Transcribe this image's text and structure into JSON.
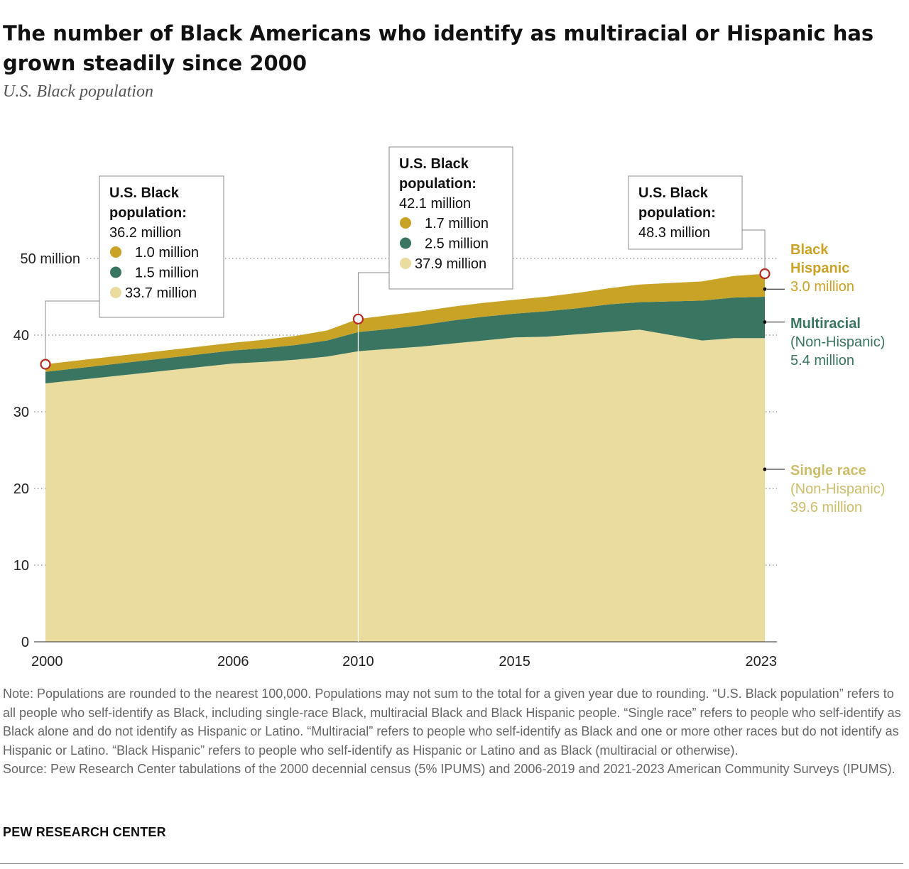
{
  "title": "The number of Black Americans who identify as multiracial or Hispanic has grown steadily since 2000",
  "subtitle": "U.S. Black population",
  "colors": {
    "single": "#e9dc9e",
    "multiracial": "#3a7562",
    "hispanic": "#c9a326",
    "hispanic_label": "#c9a326",
    "multiracial_label": "#3a7562",
    "single_label": "#cdbd6a",
    "marker": "#b52a22"
  },
  "chart_data": {
    "type": "area",
    "stacked": true,
    "x": [
      2000,
      2006,
      2007,
      2008,
      2009,
      2010,
      2011,
      2012,
      2013,
      2014,
      2015,
      2016,
      2017,
      2018,
      2019,
      2021,
      2022,
      2023
    ],
    "series": [
      {
        "name": "Single race",
        "key": "single",
        "values": [
          33.7,
          36.3,
          36.5,
          36.8,
          37.2,
          37.9,
          38.2,
          38.5,
          38.9,
          39.3,
          39.7,
          39.8,
          40.1,
          40.4,
          40.7,
          39.3,
          39.6,
          39.6
        ]
      },
      {
        "name": "Multiracial",
        "key": "multiracial",
        "values": [
          1.5,
          1.7,
          1.8,
          1.9,
          2.1,
          2.5,
          2.6,
          2.8,
          3.0,
          3.1,
          3.1,
          3.3,
          3.4,
          3.6,
          3.6,
          5.2,
          5.3,
          5.4
        ]
      },
      {
        "name": "Black Hispanic",
        "key": "hispanic",
        "values": [
          1.0,
          1.0,
          1.1,
          1.2,
          1.3,
          1.7,
          1.8,
          1.8,
          1.8,
          1.8,
          1.8,
          1.9,
          2.0,
          2.1,
          2.3,
          2.5,
          2.8,
          3.0
        ]
      }
    ],
    "ylim": [
      0,
      50
    ],
    "yticks": [
      0,
      10,
      20,
      30,
      40,
      50
    ],
    "ytick_labels": [
      "0",
      "10",
      "20",
      "30",
      "40",
      "50 million"
    ],
    "xticks": [
      2000,
      2006,
      2010,
      2015,
      2023
    ],
    "xtick_labels": [
      "2000",
      "2006",
      "2010",
      "2015",
      "2023"
    ],
    "xlabel": "",
    "ylabel": "",
    "grid": "dotted horizontal",
    "annotations": [
      {
        "year": 2000,
        "heading": "U.S. Black population:",
        "total": "36.2 million",
        "items": [
          {
            "key": "hispanic",
            "text": "1.0 million"
          },
          {
            "key": "multiracial",
            "text": "1.5 million"
          },
          {
            "key": "single",
            "text": "33.7 million"
          }
        ]
      },
      {
        "year": 2010,
        "heading": "U.S. Black population:",
        "total": "42.1 million",
        "items": [
          {
            "key": "hispanic",
            "text": "1.7 million"
          },
          {
            "key": "multiracial",
            "text": "2.5 million"
          },
          {
            "key": "single",
            "text": "37.9 million"
          }
        ]
      },
      {
        "year": 2023,
        "heading": "U.S. Black population:",
        "total": "48.3 million",
        "items": []
      }
    ],
    "end_labels": [
      {
        "key": "hispanic",
        "value": 46.0,
        "lines": [
          {
            "text": "Black",
            "bold": true
          },
          {
            "text": "Hispanic",
            "bold": true
          },
          {
            "text": "3.0 million",
            "bold": false
          }
        ]
      },
      {
        "key": "multiracial",
        "value": 41.7,
        "lines": [
          {
            "text": "Multiracial",
            "bold": true
          },
          {
            "text": "(Non-Hispanic)",
            "bold": false
          },
          {
            "text": "5.4 million",
            "bold": false
          }
        ]
      },
      {
        "key": "single",
        "value": 22.5,
        "lines": [
          {
            "text": "Single race",
            "bold": true
          },
          {
            "text": "(Non-Hispanic)",
            "bold": false
          },
          {
            "text": "39.6 million",
            "bold": false
          }
        ]
      }
    ]
  },
  "notes": {
    "note": "Note: Populations are rounded to the nearest 100,000. Populations may not sum to the total for a given year due to rounding. “U.S. Black population” refers to all people who self-identify as Black, including single-race Black, multiracial Black and Black Hispanic people. “Single race” refers to people who self-identify as Black alone and do not identify as Hispanic or Latino. “Multiracial” refers to people who self-identify as Black and one or more other races but do not identify as Hispanic or Latino. “Black Hispanic” refers to people who self-identify as Hispanic or Latino and as Black (multiracial or otherwise).",
    "source": "Source: Pew Research Center tabulations of the 2000 decennial census (5% IPUMS) and 2006-2019 and 2021-2023 American Community Surveys (IPUMS)."
  },
  "brand": "PEW RESEARCH CENTER"
}
